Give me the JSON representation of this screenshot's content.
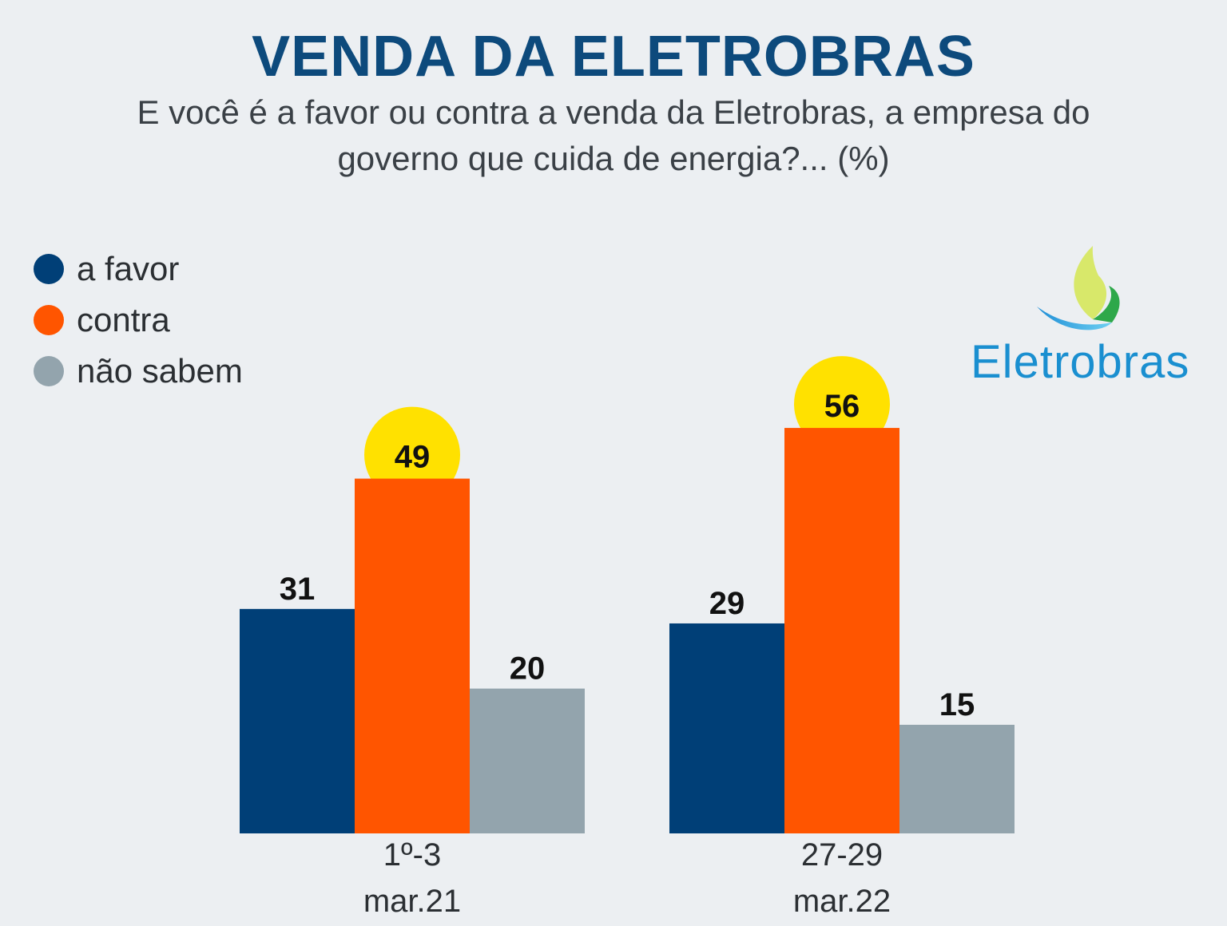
{
  "header": {
    "title": "VENDA DA ELETROBRAS",
    "subtitle": "E você é a favor ou contra a venda da Eletrobras, a empresa do governo que cuida de energia?... (%)"
  },
  "legend": [
    {
      "label": "a favor",
      "color": "#003f77"
    },
    {
      "label": "contra",
      "color": "#ff5500"
    },
    {
      "label": "não sabem",
      "color": "#93a4ad"
    }
  ],
  "logo": {
    "text": "Eletrobras"
  },
  "colors": {
    "highlight": "#ffe100"
  },
  "chart_data": {
    "type": "bar",
    "categories": [
      {
        "line1": "1º-3",
        "line2": "mar.21"
      },
      {
        "line1": "27-29",
        "line2": "mar.22"
      }
    ],
    "series": [
      {
        "name": "a favor",
        "values": [
          31,
          29
        ],
        "color": "#003f77"
      },
      {
        "name": "contra",
        "values": [
          49,
          56
        ],
        "color": "#ff5500"
      },
      {
        "name": "não sabem",
        "values": [
          20,
          15
        ],
        "color": "#93a4ad"
      }
    ],
    "highlight_series": "contra",
    "ylim": [
      0,
      56
    ],
    "grid": false,
    "legend_position": "top-left"
  }
}
